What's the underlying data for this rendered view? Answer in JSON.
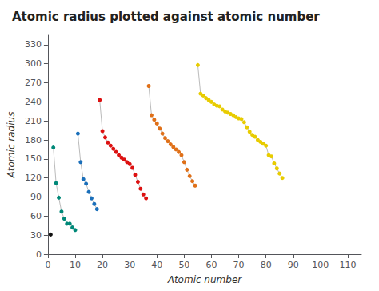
{
  "chart_data": {
    "type": "scatter",
    "title": "Atomic radius plotted against atomic number",
    "xlabel": "Atomic number",
    "ylabel": "Atomic radius",
    "xlim": [
      0,
      115
    ],
    "ylim": [
      0,
      345
    ],
    "xticks": [
      0,
      10,
      20,
      30,
      40,
      50,
      60,
      70,
      80,
      90,
      100,
      110
    ],
    "yticks": [
      0,
      30,
      60,
      90,
      120,
      150,
      180,
      210,
      240,
      270,
      300,
      330
    ],
    "grid": false,
    "marker": "circle",
    "line_style": "solid",
    "series": [
      {
        "color": "#111111",
        "x": [
          1
        ],
        "values": [
          31
        ]
      },
      {
        "color": "#008878",
        "x": [
          2,
          3,
          4,
          5,
          6,
          7,
          8,
          9,
          10
        ],
        "values": [
          168,
          112,
          89,
          67,
          56,
          48,
          48,
          42,
          38
        ]
      },
      {
        "color": "#1a6fba",
        "x": [
          11,
          12,
          13,
          14,
          15,
          16,
          17,
          18
        ],
        "values": [
          190,
          145,
          118,
          111,
          98,
          88,
          79,
          71
        ]
      },
      {
        "color": "#dd1111",
        "x": [
          19,
          20,
          21,
          22,
          23,
          24,
          25,
          26,
          27,
          28,
          29,
          30,
          31,
          32,
          33,
          34,
          35,
          36
        ],
        "values": [
          243,
          194,
          184,
          176,
          171,
          166,
          161,
          156,
          152,
          149,
          145,
          142,
          136,
          125,
          114,
          103,
          94,
          88
        ]
      },
      {
        "color": "#e07018",
        "x": [
          37,
          38,
          39,
          40,
          41,
          42,
          43,
          44,
          45,
          46,
          47,
          48,
          49,
          50,
          51,
          52,
          53,
          54
        ],
        "values": [
          265,
          219,
          212,
          206,
          198,
          190,
          183,
          178,
          173,
          169,
          165,
          161,
          156,
          145,
          133,
          123,
          115,
          108
        ]
      },
      {
        "color": "#e8cc00",
        "x": [
          55,
          56,
          57,
          58,
          59,
          60,
          61,
          62,
          63,
          64,
          65,
          66,
          67,
          68,
          69,
          70,
          71,
          72,
          73,
          74,
          75,
          76,
          77,
          78,
          79,
          80,
          81,
          82,
          83,
          84,
          85,
          86
        ],
        "values": [
          298,
          253,
          250,
          246,
          243,
          240,
          236,
          234,
          233,
          228,
          225,
          223,
          221,
          219,
          216,
          214,
          213,
          208,
          200,
          193,
          188,
          185,
          180,
          177,
          174,
          171,
          156,
          154,
          143,
          135,
          127,
          120
        ]
      }
    ]
  }
}
